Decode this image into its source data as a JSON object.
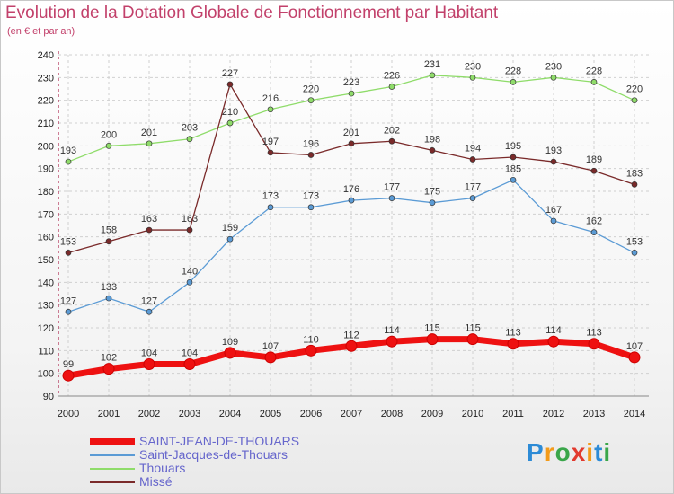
{
  "chart_data": {
    "type": "line",
    "title": "Evolution de la Dotation Globale de Fonctionnement par Habitant",
    "subtitle": "(en € et par an)",
    "xlabel": "",
    "ylabel": "",
    "x": [
      "2000",
      "2001",
      "2002",
      "2003",
      "2004",
      "2005",
      "2006",
      "2007",
      "2008",
      "2009",
      "2010",
      "2011",
      "2012",
      "2013",
      "2014"
    ],
    "ylim": [
      90,
      240
    ],
    "yticks": [
      "90",
      "100",
      "110",
      "120",
      "130",
      "140",
      "150",
      "160",
      "170",
      "180",
      "190",
      "200",
      "210",
      "220",
      "230",
      "240"
    ],
    "grid": true,
    "legend_position": "bottom-left",
    "series": [
      {
        "name": "SAINT-JEAN-DE-THOUARS",
        "color": "#ee1111",
        "values": [
          99,
          102,
          104,
          104,
          109,
          107,
          110,
          112,
          114,
          115,
          115,
          113,
          114,
          113,
          107
        ]
      },
      {
        "name": "Saint-Jacques-de-Thouars",
        "color": "#5b9bd5",
        "values": [
          127,
          133,
          127,
          140,
          159,
          173,
          173,
          176,
          177,
          175,
          177,
          185,
          167,
          162,
          153
        ]
      },
      {
        "name": "Thouars",
        "color": "#8fdc6a",
        "values": [
          193,
          200,
          201,
          203,
          210,
          216,
          220,
          223,
          226,
          231,
          230,
          228,
          230,
          228,
          220
        ]
      },
      {
        "name": "Missé",
        "color": "#7a2a2a",
        "values": [
          153,
          158,
          163,
          163,
          227,
          197,
          196,
          201,
          202,
          198,
          194,
          195,
          193,
          189,
          183
        ]
      }
    ]
  },
  "logo": {
    "text": "Proxiti",
    "letters": [
      {
        "ch": "P",
        "color": "#2d8bd6"
      },
      {
        "ch": "r",
        "color": "#f39b1a"
      },
      {
        "ch": "o",
        "color": "#3aa64a"
      },
      {
        "ch": "x",
        "color": "#e23a2e"
      },
      {
        "ch": "i",
        "color": "#f39b1a"
      },
      {
        "ch": "t",
        "color": "#2d8bd6"
      },
      {
        "ch": "i",
        "color": "#3aa64a"
      }
    ]
  }
}
